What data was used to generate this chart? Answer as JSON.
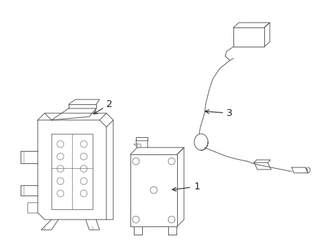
{
  "background_color": "#ffffff",
  "line_color": "#555555",
  "line_width": 0.7,
  "label_fontsize": 10,
  "xlim": [
    0,
    489
  ],
  "ylim": [
    0,
    360
  ]
}
